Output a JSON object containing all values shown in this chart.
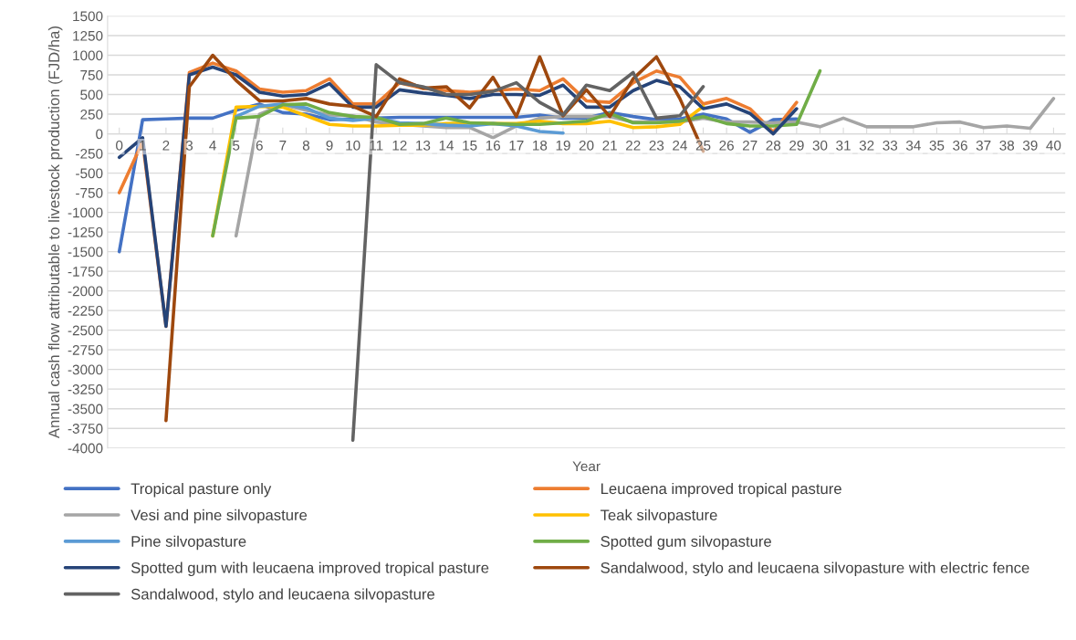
{
  "chart_data": {
    "type": "line",
    "xlabel": "Year",
    "ylabel": "Annual cash flow attributable to livestock production (FJD/ha)",
    "categories": [
      "0",
      "1",
      "2",
      "3",
      "4",
      "5",
      "6",
      "7",
      "8",
      "9",
      "10",
      "11",
      "12",
      "13",
      "14",
      "15",
      "16",
      "17",
      "18",
      "19",
      "20",
      "21",
      "22",
      "23",
      "24",
      "25",
      "26",
      "27",
      "28",
      "29",
      "30",
      "31",
      "32",
      "33",
      "34",
      "35",
      "36",
      "37",
      "38",
      "39",
      "40"
    ],
    "ylim": [
      -4000,
      1500
    ],
    "yticks": [
      -4000,
      -3750,
      -3500,
      -3250,
      -3000,
      -2750,
      -2500,
      -2250,
      -2000,
      -1750,
      -1500,
      -1250,
      -1000,
      -750,
      -500,
      -250,
      0,
      250,
      500,
      750,
      1000,
      1250,
      1500
    ],
    "grid": "y",
    "legend": "bottom",
    "marker": "none",
    "line_style": "solid",
    "series": [
      {
        "name": "Tropical pasture only",
        "color": "#4472c4",
        "values": [
          -1500,
          180,
          190,
          200,
          200,
          300,
          380,
          270,
          250,
          180,
          190,
          200,
          210,
          210,
          210,
          210,
          210,
          210,
          240,
          200,
          200,
          270,
          220,
          180,
          190,
          250,
          190,
          20,
          180,
          190,
          null,
          null,
          null,
          null,
          null,
          null,
          null,
          null,
          null,
          null,
          null
        ]
      },
      {
        "name": "Leucaena improved tropical pasture",
        "color": "#ed7d31",
        "values": [
          -750,
          -100,
          -2450,
          780,
          900,
          800,
          570,
          530,
          550,
          700,
          380,
          380,
          650,
          580,
          550,
          530,
          550,
          570,
          550,
          700,
          420,
          400,
          650,
          800,
          720,
          380,
          450,
          320,
          20,
          400,
          null,
          null,
          null,
          null,
          null,
          null,
          null,
          null,
          null,
          null,
          null
        ]
      },
      {
        "name": "Vesi and pine silvopasture",
        "color": "#a5a5a5",
        "values": [
          null,
          null,
          null,
          null,
          null,
          -1300,
          250,
          370,
          300,
          240,
          230,
          150,
          120,
          100,
          80,
          80,
          -50,
          100,
          200,
          220,
          220,
          220,
          150,
          150,
          150,
          200,
          150,
          150,
          140,
          150,
          90,
          200,
          90,
          90,
          90,
          140,
          150,
          80,
          100,
          70,
          450
        ]
      },
      {
        "name": "Teak silvopasture",
        "color": "#ffc000",
        "values": [
          null,
          null,
          null,
          null,
          -1300,
          340,
          350,
          340,
          230,
          120,
          100,
          100,
          110,
          110,
          130,
          140,
          130,
          130,
          160,
          130,
          130,
          160,
          80,
          90,
          120,
          350,
          null,
          null,
          null,
          null,
          null,
          null,
          null,
          null,
          null,
          null,
          null,
          null,
          null,
          null,
          null
        ]
      },
      {
        "name": "Pine silvopasture",
        "color": "#5b9bd5",
        "values": [
          null,
          null,
          null,
          null,
          null,
          220,
          350,
          380,
          330,
          200,
          170,
          200,
          140,
          130,
          110,
          100,
          130,
          100,
          30,
          10,
          null,
          null,
          null,
          null,
          null,
          null,
          null,
          null,
          null,
          null,
          null,
          null,
          null,
          null,
          null,
          null,
          null,
          null,
          null,
          null,
          null
        ]
      },
      {
        "name": "Spotted gum silvopasture",
        "color": "#70ad47",
        "values": [
          null,
          null,
          null,
          null,
          -1300,
          200,
          220,
          370,
          380,
          270,
          220,
          210,
          120,
          130,
          200,
          140,
          130,
          120,
          120,
          140,
          160,
          260,
          140,
          140,
          160,
          220,
          130,
          100,
          100,
          120,
          800,
          null,
          null,
          null,
          null,
          null,
          null,
          null,
          null,
          null,
          null
        ]
      },
      {
        "name": "Spotted gum with leucaena improved tropical pasture",
        "color": "#264478",
        "values": [
          -300,
          -50,
          -2450,
          750,
          850,
          750,
          530,
          480,
          500,
          640,
          340,
          340,
          560,
          520,
          490,
          450,
          500,
          500,
          490,
          620,
          340,
          340,
          550,
          680,
          600,
          320,
          380,
          260,
          0,
          320,
          null,
          null,
          null,
          null,
          null,
          null,
          null,
          null,
          null,
          null,
          null
        ]
      },
      {
        "name": "Sandalwood, stylo and leucaena silvopasture with electric fence",
        "color": "#9e480e",
        "values": [
          null,
          null,
          -3650,
          600,
          1000,
          680,
          420,
          420,
          450,
          380,
          350,
          220,
          700,
          580,
          600,
          330,
          720,
          220,
          980,
          230,
          560,
          220,
          700,
          980,
          450,
          -220,
          null,
          null,
          null,
          null,
          null,
          null,
          null,
          null,
          null,
          null,
          null,
          null,
          null,
          null,
          null
        ]
      },
      {
        "name": "Sandalwood, stylo and leucaena silvopasture",
        "color": "#636363",
        "values": [
          null,
          null,
          null,
          null,
          null,
          null,
          null,
          null,
          null,
          null,
          -3900,
          880,
          650,
          600,
          500,
          500,
          540,
          650,
          400,
          240,
          620,
          550,
          780,
          200,
          230,
          600,
          null,
          null,
          null,
          null,
          null,
          null,
          null,
          null,
          null,
          null,
          null,
          null,
          null,
          null,
          null
        ]
      }
    ]
  }
}
